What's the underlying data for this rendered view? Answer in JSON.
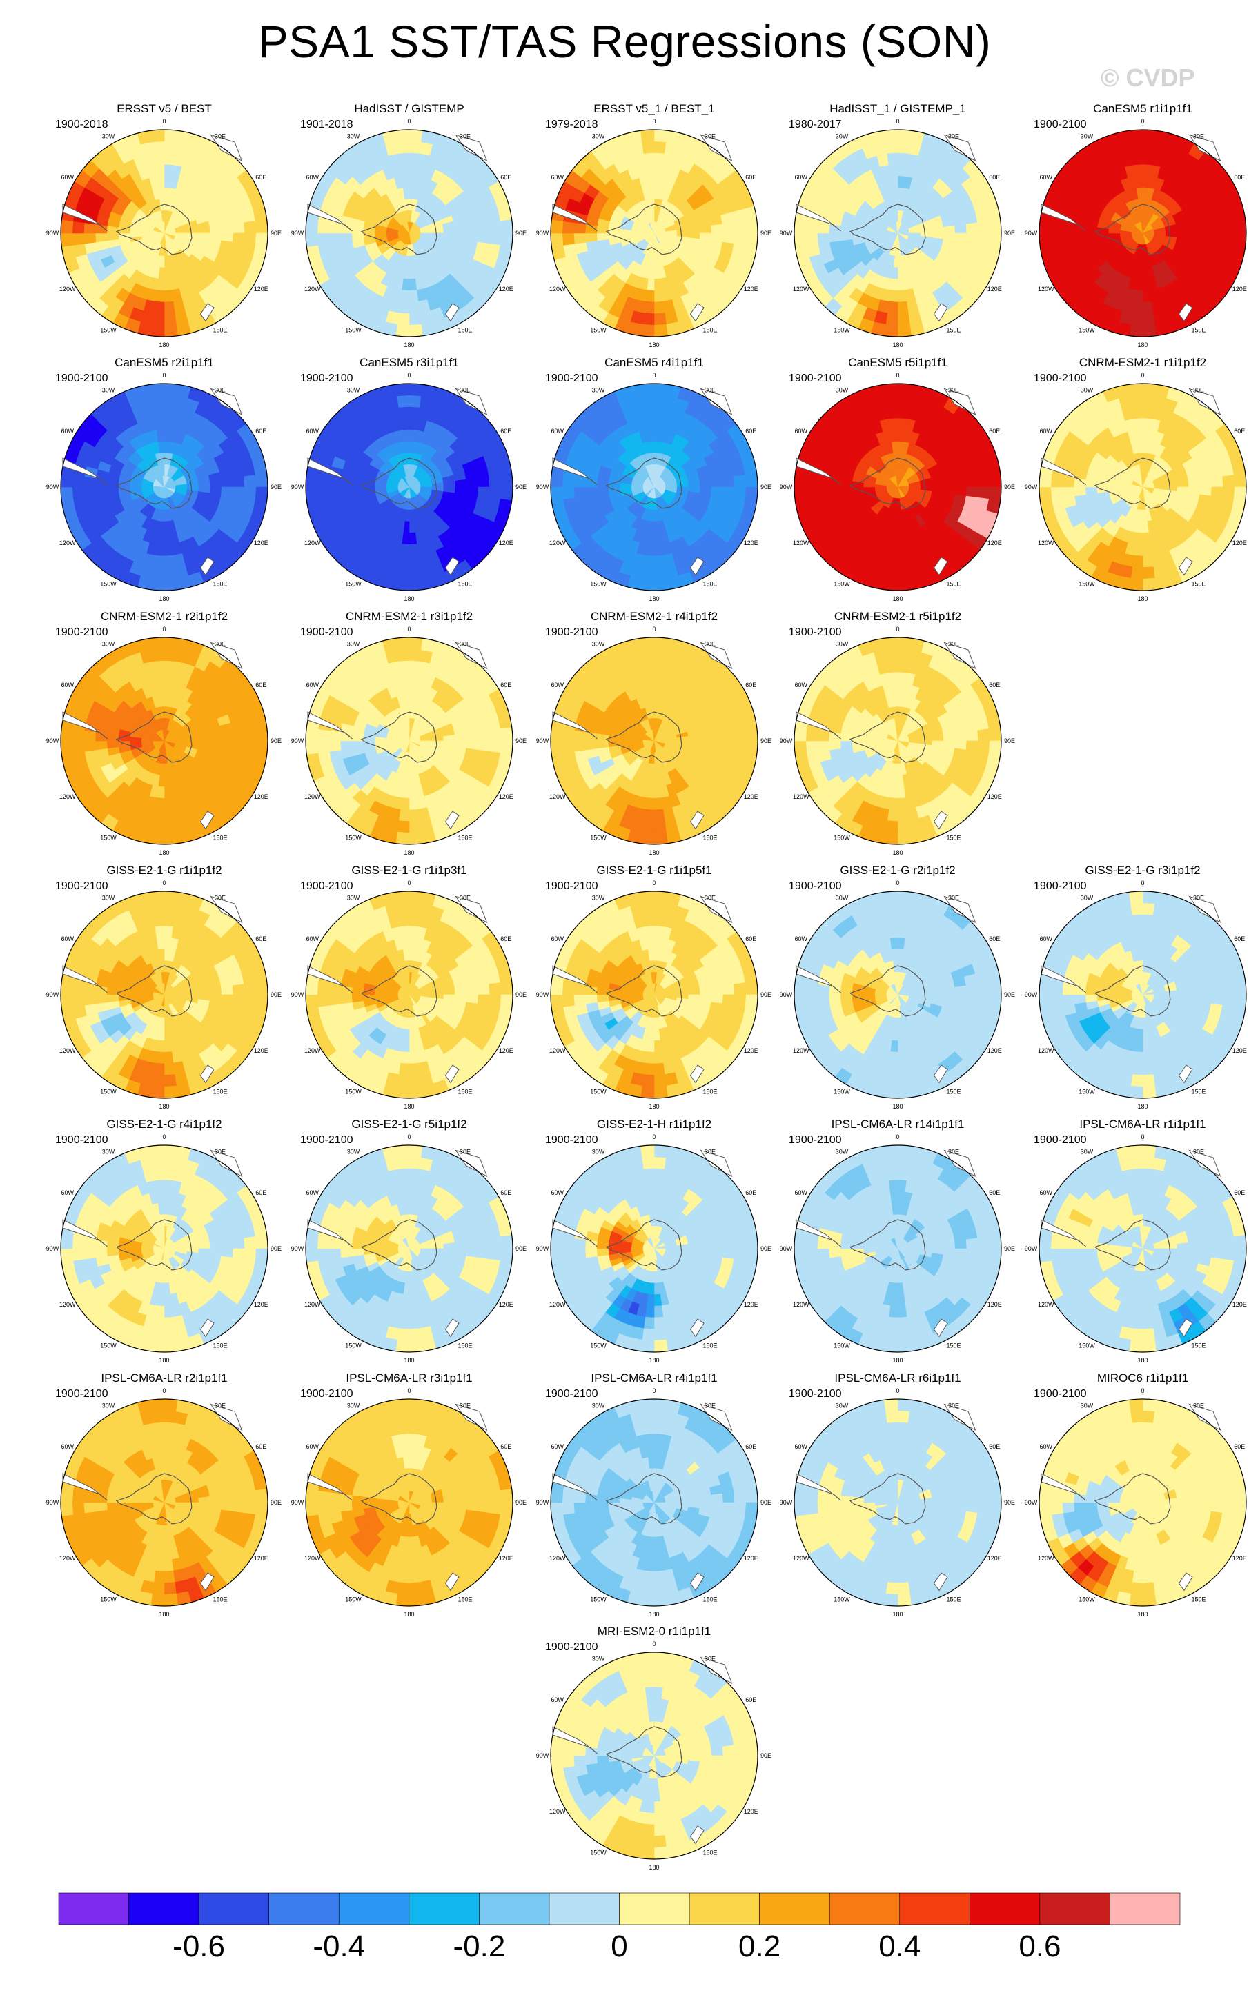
{
  "title": "PSA1 SST/TAS Regressions (SON)",
  "watermark": "© CVDP",
  "map_labels": {
    "top": "0",
    "upper_right": "30E",
    "right_high": "60E",
    "right": "90E",
    "right_low": "120E",
    "lower_right": "150E",
    "bottom": "180",
    "lower_left": "150W",
    "left_low": "120W",
    "left": "90W",
    "left_high": "60W",
    "upper_left": "30W"
  },
  "panels": [
    {
      "title": "ERSST v5 / BEST",
      "period": "1900-2018",
      "base": 0.1,
      "features": [
        {
          "lon": -70,
          "rad": 0.78,
          "amp": 0.45,
          "size": 0.28
        },
        {
          "lon": -115,
          "rad": 0.55,
          "amp": -0.28,
          "size": 0.22
        },
        {
          "lon": -170,
          "rad": 0.85,
          "amp": 0.35,
          "size": 0.25
        },
        {
          "lon": 10,
          "rad": 0.6,
          "amp": -0.1,
          "size": 0.3
        }
      ]
    },
    {
      "title": "HadISST / GISTEMP",
      "period": "1901-2018",
      "base": -0.02,
      "features": [
        {
          "lon": -90,
          "rad": 0.15,
          "amp": 0.3,
          "size": 0.15
        },
        {
          "lon": -60,
          "rad": 0.5,
          "amp": 0.15,
          "size": 0.2
        },
        {
          "lon": 150,
          "rad": 0.7,
          "amp": -0.1,
          "size": 0.25
        }
      ]
    },
    {
      "title": "ERSST v5_1 / BEST_1",
      "period": "1979-2018",
      "base": 0.06,
      "features": [
        {
          "lon": -70,
          "rad": 0.8,
          "amp": 0.45,
          "size": 0.25
        },
        {
          "lon": -110,
          "rad": 0.5,
          "amp": -0.2,
          "size": 0.22
        },
        {
          "lon": -170,
          "rad": 0.85,
          "amp": 0.35,
          "size": 0.22
        },
        {
          "lon": 60,
          "rad": 0.6,
          "amp": 0.15,
          "size": 0.2
        }
      ]
    },
    {
      "title": "HadISST_1 / GISTEMP_1",
      "period": "1980-2017",
      "base": 0.03,
      "features": [
        {
          "lon": -120,
          "rad": 0.5,
          "amp": -0.2,
          "size": 0.2
        },
        {
          "lon": -170,
          "rad": 0.85,
          "amp": 0.35,
          "size": 0.2
        },
        {
          "lon": 20,
          "rad": 0.5,
          "amp": -0.1,
          "size": 0.3
        }
      ]
    },
    {
      "title": "CanESM5 r1i1p1f1",
      "period": "1900-2100",
      "base": 0.55,
      "features": [
        {
          "lon": 0,
          "rad": 0.05,
          "amp": -0.25,
          "size": 0.3
        },
        {
          "lon": -170,
          "rad": 0.6,
          "amp": 0.1,
          "size": 0.2
        }
      ]
    },
    {
      "title": "CanESM5 r2i1p1f1",
      "period": "1900-2100",
      "base": -0.5,
      "features": [
        {
          "lon": 0,
          "rad": 0.05,
          "amp": 0.4,
          "size": 0.3
        },
        {
          "lon": -60,
          "rad": 0.95,
          "amp": -0.15,
          "size": 0.2
        }
      ]
    },
    {
      "title": "CanESM5 r3i1p1f1",
      "period": "1900-2100",
      "base": -0.55,
      "features": [
        {
          "lon": 0,
          "rad": 0.05,
          "amp": 0.4,
          "size": 0.3
        },
        {
          "lon": 120,
          "rad": 0.7,
          "amp": -0.1,
          "size": 0.3
        }
      ]
    },
    {
      "title": "CanESM5 r4i1p1f1",
      "period": "1900-2100",
      "base": -0.4,
      "features": [
        {
          "lon": 0,
          "rad": 0.05,
          "amp": 0.35,
          "size": 0.3
        }
      ]
    },
    {
      "title": "CanESM5 r5i1p1f1",
      "period": "1900-2100",
      "base": 0.55,
      "features": [
        {
          "lon": 0,
          "rad": 0.05,
          "amp": -0.25,
          "size": 0.3
        },
        {
          "lon": 110,
          "rad": 0.9,
          "amp": 0.2,
          "size": 0.2
        }
      ]
    },
    {
      "title": "CNRM-ESM2-1 r1i1p1f2",
      "period": "1900-2100",
      "base": 0.1,
      "features": [
        {
          "lon": -120,
          "rad": 0.5,
          "amp": -0.2,
          "size": 0.2
        },
        {
          "lon": -160,
          "rad": 0.85,
          "amp": 0.2,
          "size": 0.25
        }
      ]
    },
    {
      "title": "CNRM-ESM2-1 r2i1p1f2",
      "period": "1900-2100",
      "base": 0.25,
      "features": [
        {
          "lon": -80,
          "rad": 0.35,
          "amp": 0.25,
          "size": 0.2
        },
        {
          "lon": -120,
          "rad": 0.5,
          "amp": -0.2,
          "size": 0.18
        },
        {
          "lon": 0,
          "rad": 0.6,
          "amp": -0.1,
          "size": 0.3
        }
      ]
    },
    {
      "title": "CNRM-ESM2-1 r3i1p1f2",
      "period": "1900-2100",
      "base": 0.08,
      "features": [
        {
          "lon": -120,
          "rad": 0.5,
          "amp": -0.2,
          "size": 0.2
        },
        {
          "lon": -160,
          "rad": 0.85,
          "amp": 0.15,
          "size": 0.22
        }
      ]
    },
    {
      "title": "CNRM-ESM2-1 r4i1p1f2",
      "period": "1900-2100",
      "base": 0.15,
      "features": [
        {
          "lon": -80,
          "rad": 0.35,
          "amp": 0.15,
          "size": 0.2
        },
        {
          "lon": -120,
          "rad": 0.5,
          "amp": -0.2,
          "size": 0.18
        },
        {
          "lon": -170,
          "rad": 0.85,
          "amp": 0.2,
          "size": 0.25
        }
      ]
    },
    {
      "title": "CNRM-ESM2-1 r5i1p1f2",
      "period": "1900-2100",
      "base": 0.1,
      "features": [
        {
          "lon": -120,
          "rad": 0.5,
          "amp": -0.18,
          "size": 0.2
        },
        {
          "lon": -160,
          "rad": 0.85,
          "amp": 0.15,
          "size": 0.22
        }
      ]
    },
    {
      "title": "GISS-E2-1-G r1i1p1f2",
      "period": "1900-2100",
      "base": 0.12,
      "features": [
        {
          "lon": -80,
          "rad": 0.35,
          "amp": 0.25,
          "size": 0.18
        },
        {
          "lon": -125,
          "rad": 0.5,
          "amp": -0.3,
          "size": 0.18
        },
        {
          "lon": -170,
          "rad": 0.85,
          "amp": 0.25,
          "size": 0.22
        }
      ]
    },
    {
      "title": "GISS-E2-1-G r1i1p3f1",
      "period": "1900-2100",
      "base": 0.1,
      "features": [
        {
          "lon": -80,
          "rad": 0.35,
          "amp": 0.25,
          "size": 0.18
        },
        {
          "lon": -140,
          "rad": 0.5,
          "amp": -0.25,
          "size": 0.18
        }
      ]
    },
    {
      "title": "GISS-E2-1-G r1i1p5f1",
      "period": "1900-2100",
      "base": 0.1,
      "features": [
        {
          "lon": -80,
          "rad": 0.35,
          "amp": 0.3,
          "size": 0.18
        },
        {
          "lon": -125,
          "rad": 0.5,
          "amp": -0.35,
          "size": 0.18
        },
        {
          "lon": -170,
          "rad": 0.85,
          "amp": 0.2,
          "size": 0.22
        }
      ]
    },
    {
      "title": "GISS-E2-1-G r2i1p1f2",
      "period": "1900-2100",
      "base": -0.06,
      "features": [
        {
          "lon": -80,
          "rad": 0.35,
          "amp": 0.3,
          "size": 0.18
        },
        {
          "lon": -120,
          "rad": 0.55,
          "amp": 0.12,
          "size": 0.2
        }
      ]
    },
    {
      "title": "GISS-E2-1-G r3i1p1f2",
      "period": "1900-2100",
      "base": -0.04,
      "features": [
        {
          "lon": -80,
          "rad": 0.35,
          "amp": 0.3,
          "size": 0.18
        },
        {
          "lon": -125,
          "rad": 0.5,
          "amp": -0.25,
          "size": 0.18
        }
      ]
    },
    {
      "title": "GISS-E2-1-G r4i1p1f2",
      "period": "1900-2100",
      "base": 0.0,
      "features": [
        {
          "lon": -80,
          "rad": 0.35,
          "amp": 0.25,
          "size": 0.18
        },
        {
          "lon": -150,
          "rad": 0.8,
          "amp": 0.12,
          "size": 0.22
        }
      ]
    },
    {
      "title": "GISS-E2-1-G r5i1p1f2",
      "period": "1900-2100",
      "base": -0.02,
      "features": [
        {
          "lon": -80,
          "rad": 0.35,
          "amp": 0.25,
          "size": 0.18
        },
        {
          "lon": -130,
          "rad": 0.5,
          "amp": -0.2,
          "size": 0.18
        }
      ]
    },
    {
      "title": "GISS-E2-1-H r1i1p1f2",
      "period": "1900-2100",
      "base": -0.04,
      "features": [
        {
          "lon": -80,
          "rad": 0.35,
          "amp": 0.55,
          "size": 0.15
        },
        {
          "lon": -160,
          "rad": 0.6,
          "amp": -0.5,
          "size": 0.15
        }
      ]
    },
    {
      "title": "IPSL-CM6A-LR r14i1p1f1",
      "period": "1900-2100",
      "base": -0.08,
      "features": [
        {
          "lon": -100,
          "rad": 0.6,
          "amp": 0.12,
          "size": 0.2
        }
      ]
    },
    {
      "title": "IPSL-CM6A-LR r1i1p1f1",
      "period": "1900-2100",
      "base": -0.02,
      "features": [
        {
          "lon": 150,
          "rad": 0.8,
          "amp": -0.3,
          "size": 0.15
        },
        {
          "lon": -60,
          "rad": 0.6,
          "amp": 0.1,
          "size": 0.2
        }
      ]
    },
    {
      "title": "IPSL-CM6A-LR r2i1p1f1",
      "period": "1900-2100",
      "base": 0.18,
      "features": [
        {
          "lon": 160,
          "rad": 0.85,
          "amp": 0.3,
          "size": 0.15
        },
        {
          "lon": -120,
          "rad": 0.7,
          "amp": 0.12,
          "size": 0.2
        }
      ]
    },
    {
      "title": "IPSL-CM6A-LR r3i1p1f1",
      "period": "1900-2100",
      "base": 0.18,
      "features": [
        {
          "lon": -120,
          "rad": 0.5,
          "amp": 0.18,
          "size": 0.18
        },
        {
          "lon": 0,
          "rad": 0.55,
          "amp": -0.1,
          "size": 0.25
        }
      ]
    },
    {
      "title": "IPSL-CM6A-LR r4i1p1f1",
      "period": "1900-2100",
      "base": -0.1,
      "features": [
        {
          "lon": 60,
          "rad": 0.5,
          "amp": 0.08,
          "size": 0.2
        }
      ]
    },
    {
      "title": "IPSL-CM6A-LR r6i1p1f1",
      "period": "1900-2100",
      "base": -0.04,
      "features": [
        {
          "lon": -110,
          "rad": 0.6,
          "amp": 0.12,
          "size": 0.2
        }
      ]
    },
    {
      "title": "MIROC6 r1i1p1f1",
      "period": "1900-2100",
      "base": 0.06,
      "features": [
        {
          "lon": -140,
          "rad": 0.85,
          "amp": 0.5,
          "size": 0.18
        },
        {
          "lon": -110,
          "rad": 0.55,
          "amp": -0.25,
          "size": 0.2
        }
      ]
    },
    {
      "title": "MRI-ESM2-0 r1i1p1f1",
      "period": "1900-2100",
      "base": 0.02,
      "features": [
        {
          "lon": -120,
          "rad": 0.5,
          "amp": -0.22,
          "size": 0.2
        },
        {
          "lon": -160,
          "rad": 0.85,
          "amp": 0.15,
          "size": 0.22
        }
      ]
    }
  ],
  "colorbar": {
    "levels": [
      -0.7,
      -0.6,
      -0.5,
      -0.4,
      -0.3,
      -0.2,
      -0.1,
      0,
      0.1,
      0.2,
      0.3,
      0.4,
      0.5,
      0.6,
      0.7
    ],
    "colors": [
      "#7e2bf0",
      "#1c00f5",
      "#2e4be6",
      "#3c7ef0",
      "#2c98f4",
      "#12b7f0",
      "#79c9f2",
      "#b6e0f5",
      "#fff59a",
      "#fbd64a",
      "#f9a713",
      "#f77a13",
      "#f33e10",
      "#e20a0a",
      "#c81e1e",
      "#ffb4b4"
    ],
    "tick_labels": [
      "-0.6",
      "-0.4",
      "-0.2",
      "0",
      "0.2",
      "0.4",
      "0.6"
    ],
    "tick_values": [
      -0.6,
      -0.4,
      -0.2,
      0,
      0.2,
      0.4,
      0.6
    ]
  }
}
